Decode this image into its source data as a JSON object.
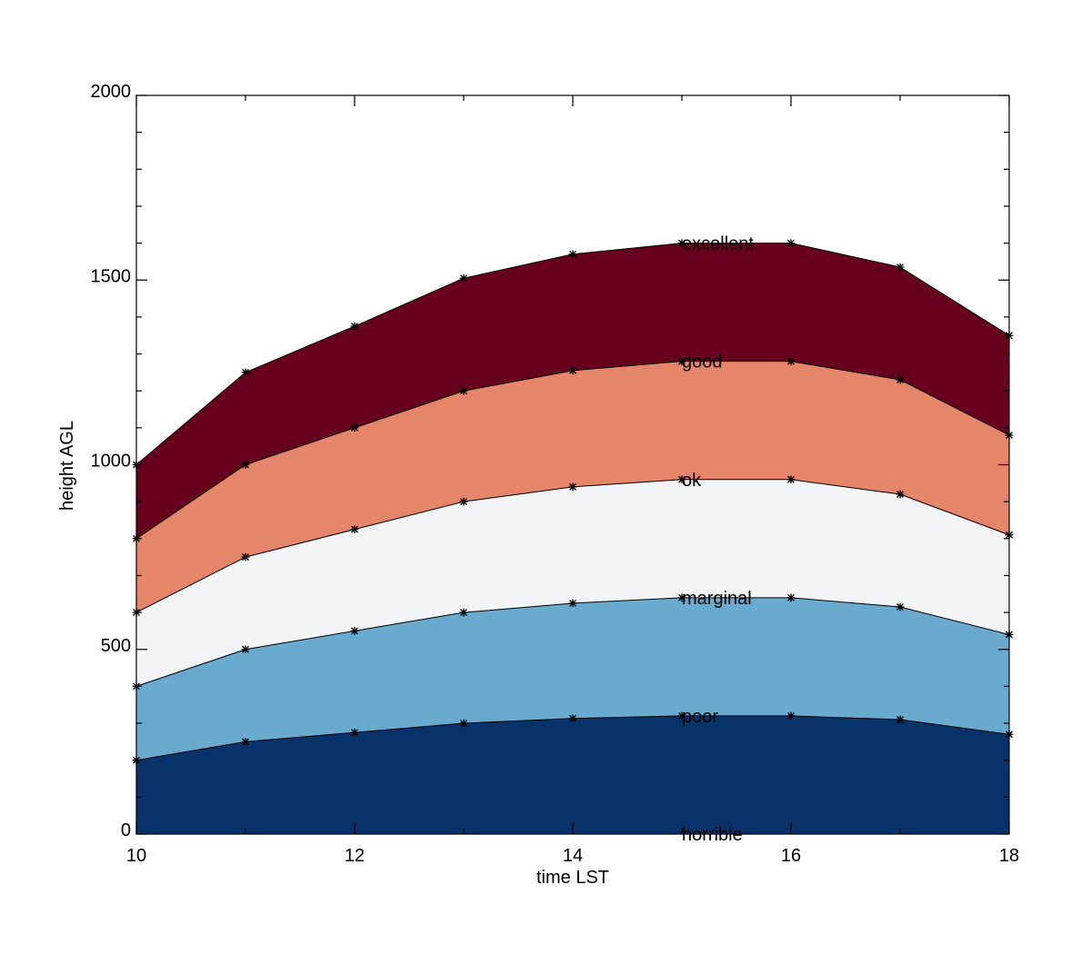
{
  "chart_data": {
    "type": "area",
    "xlabel": "time LST",
    "ylabel": "height AGL",
    "xlim": [
      10,
      18
    ],
    "ylim": [
      0,
      2000
    ],
    "x_ticks": [
      10,
      12,
      14,
      16,
      18
    ],
    "y_ticks": [
      0,
      500,
      1000,
      1500,
      2000
    ],
    "x_minor_step": 1,
    "y_minor_step": 100,
    "x": [
      10,
      11,
      12,
      13,
      14,
      15,
      16,
      17,
      18
    ],
    "boundaries": [
      {
        "values": [
          200,
          250,
          275,
          300,
          313,
          320,
          320,
          310,
          270
        ]
      },
      {
        "values": [
          400,
          500,
          550,
          600,
          625,
          640,
          640,
          615,
          540
        ]
      },
      {
        "values": [
          600,
          750,
          825,
          900,
          940,
          960,
          960,
          920,
          810
        ]
      },
      {
        "values": [
          800,
          1000,
          1100,
          1200,
          1255,
          1280,
          1280,
          1230,
          1080
        ]
      },
      {
        "values": [
          1000,
          1250,
          1375,
          1505,
          1570,
          1600,
          1600,
          1535,
          1350
        ]
      }
    ],
    "bands": [
      {
        "label": "horrible",
        "color": "#08336a"
      },
      {
        "label": "poor",
        "color": "#69aacf"
      },
      {
        "label": "marginal",
        "color": "#f3f4f6"
      },
      {
        "label": "ok",
        "color": "#e5856a"
      },
      {
        "label": "good",
        "color": "#67001f"
      }
    ],
    "annotations": [
      {
        "text": "horrible",
        "x": 15,
        "y": 0
      },
      {
        "text": "poor",
        "x": 15,
        "y": 320
      },
      {
        "text": "marginal",
        "x": 15,
        "y": 640
      },
      {
        "text": "ok",
        "x": 15,
        "y": 960
      },
      {
        "text": "good",
        "x": 15,
        "y": 1280
      },
      {
        "text": "excellent",
        "x": 15,
        "y": 1600
      }
    ],
    "marker": "asterisk",
    "grid": false,
    "legend": "none"
  }
}
